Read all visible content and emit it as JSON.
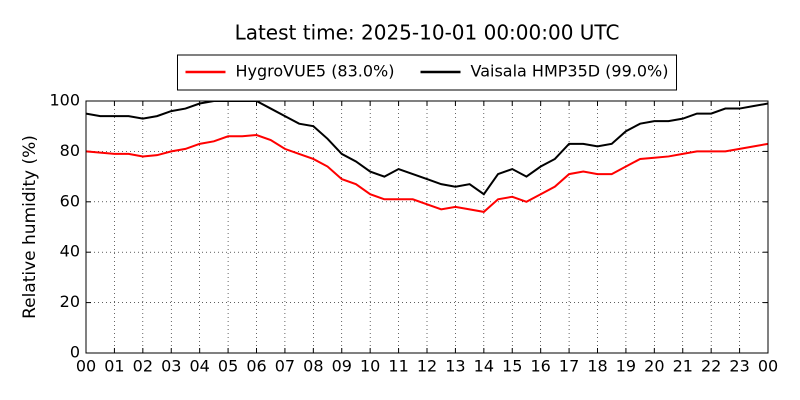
{
  "chart_data": {
    "type": "line",
    "title": "Latest time: 2025-10-01 00:00:00 UTC",
    "y_label": "Relative humidity (%)",
    "x": [
      0,
      0.5,
      1,
      1.5,
      2,
      2.5,
      3,
      3.5,
      4,
      4.5,
      5,
      5.5,
      6,
      6.5,
      7,
      7.5,
      8,
      8.5,
      9,
      9.5,
      10,
      10.5,
      11,
      11.5,
      12,
      12.5,
      13,
      13.5,
      14,
      14.5,
      15,
      15.5,
      16,
      16.5,
      17,
      17.5,
      18,
      18.5,
      19,
      19.5,
      20,
      20.5,
      21,
      21.5,
      22,
      22.5,
      23,
      23.5,
      24
    ],
    "series": [
      {
        "name": "HygroVUE5 (83.0%)",
        "color": "#ff0000",
        "values": [
          80,
          79.5,
          79,
          79,
          78,
          78.5,
          80,
          81,
          83,
          84,
          86,
          86,
          86.5,
          84.5,
          81,
          79,
          77,
          74,
          69,
          67,
          63,
          61,
          61,
          61,
          59,
          57,
          58,
          57,
          56,
          61,
          62,
          60,
          63,
          66,
          71,
          72,
          71,
          71,
          74,
          77,
          77.5,
          78,
          79,
          80,
          80,
          80,
          81,
          82,
          83
        ]
      },
      {
        "name": "Vaisala HMP35D (99.0%)",
        "color": "#000000",
        "values": [
          95,
          94,
          94,
          94,
          93,
          94,
          96,
          97,
          99,
          100,
          100,
          100,
          100,
          97,
          94,
          91,
          90,
          85,
          79,
          76,
          72,
          70,
          73,
          71,
          69,
          67,
          66,
          67,
          63,
          71,
          73,
          70,
          74,
          77,
          83,
          83,
          82,
          83,
          88,
          91,
          92,
          92,
          93,
          95,
          95,
          97,
          97,
          98,
          99
        ]
      }
    ],
    "xlim": [
      0,
      24
    ],
    "ylim": [
      0,
      100
    ],
    "xticks": [
      {
        "value": 0,
        "label": "00"
      },
      {
        "value": 1,
        "label": "01"
      },
      {
        "value": 2,
        "label": "02"
      },
      {
        "value": 3,
        "label": "03"
      },
      {
        "value": 4,
        "label": "04"
      },
      {
        "value": 5,
        "label": "05"
      },
      {
        "value": 6,
        "label": "06"
      },
      {
        "value": 7,
        "label": "07"
      },
      {
        "value": 8,
        "label": "08"
      },
      {
        "value": 9,
        "label": "09"
      },
      {
        "value": 10,
        "label": "10"
      },
      {
        "value": 11,
        "label": "11"
      },
      {
        "value": 12,
        "label": "12"
      },
      {
        "value": 13,
        "label": "13"
      },
      {
        "value": 14,
        "label": "14"
      },
      {
        "value": 15,
        "label": "15"
      },
      {
        "value": 16,
        "label": "16"
      },
      {
        "value": 17,
        "label": "17"
      },
      {
        "value": 18,
        "label": "18"
      },
      {
        "value": 19,
        "label": "19"
      },
      {
        "value": 20,
        "label": "20"
      },
      {
        "value": 21,
        "label": "21"
      },
      {
        "value": 22,
        "label": "22"
      },
      {
        "value": 23,
        "label": "23"
      },
      {
        "value": 24,
        "label": "00"
      }
    ],
    "yticks": [
      0,
      20,
      40,
      60,
      80,
      100
    ],
    "grid": true
  }
}
